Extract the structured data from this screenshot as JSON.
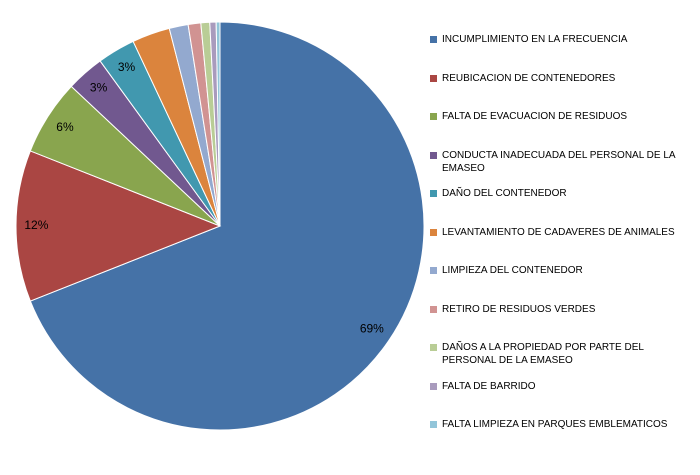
{
  "chart_data": {
    "type": "pie",
    "categories": [
      "INCUMPLIMIENTO EN LA FRECUENCIA",
      "REUBICACION DE CONTENEDORES",
      "FALTA DE EVACUACION DE RESIDUOS",
      "CONDUCTA INADECUADA DEL PERSONAL DE LA EMASEO",
      "DAÑO DEL CONTENEDOR",
      "LEVANTAMIENTO DE CADAVERES DE ANIMALES",
      "LIMPIEZA DEL CONTENEDOR",
      "RETIRO DE RESIDUOS VERDES",
      "DAÑOS A LA PROPIEDAD POR PARTE DEL PERSONAL DE LA EMASEO",
      "FALTA DE BARRIDO",
      "FALTA LIMPIEZA EN PARQUES EMBLEMATICOS"
    ],
    "values": [
      69,
      12,
      6,
      3,
      3,
      3,
      1.5,
      1,
      0.7,
      0.5,
      0.3
    ],
    "value_labels": [
      "69%",
      "12%",
      "6%",
      "3%",
      "3%",
      null,
      null,
      null,
      null,
      null,
      null
    ],
    "colors": [
      "#4572a7",
      "#aa4643",
      "#89a54e",
      "#71588f",
      "#4198af",
      "#db843d",
      "#93a9cf",
      "#d19392",
      "#b9cd96",
      "#a99bbd",
      "#92c5d9"
    ],
    "legend": "right"
  }
}
